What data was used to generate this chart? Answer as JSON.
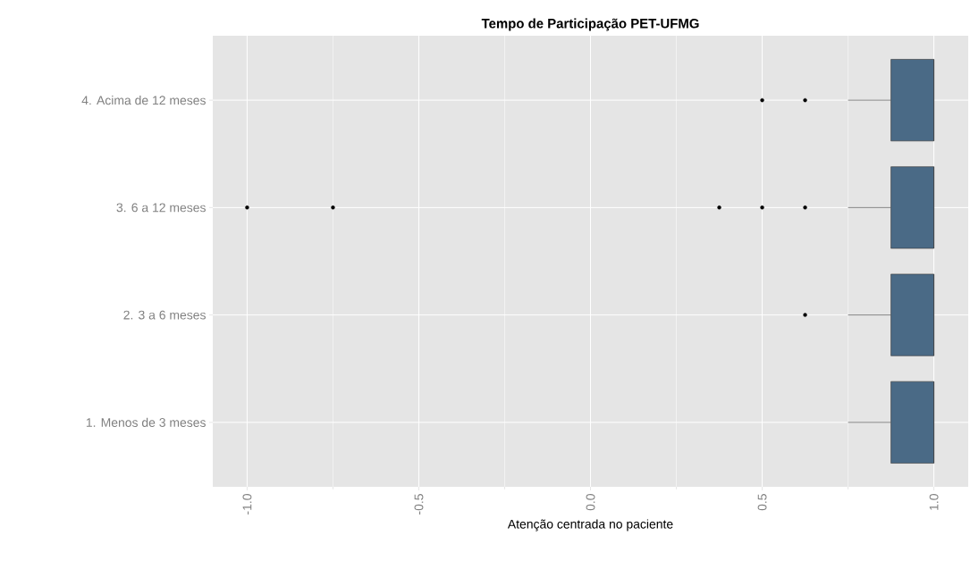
{
  "chart_data": {
    "type": "box",
    "orientation": "horizontal",
    "title": "Tempo de Participação PET-UFMG",
    "xlabel": "Atenção centrada no paciente",
    "categories": [
      "4. Acima de 12 meses",
      "3. 6 a 12 meses",
      "2. 3 a 6 meses",
      "1. Menos de 3 meses"
    ],
    "color": "#4a6a86",
    "boxes": [
      {
        "low": 0.75,
        "q1": 0.875,
        "median": 1.0,
        "q3": 1.0,
        "high": 1.0,
        "outliers": [
          0.5,
          0.625
        ]
      },
      {
        "low": 0.75,
        "q1": 0.875,
        "median": 1.0,
        "q3": 1.0,
        "high": 1.0,
        "outliers": [
          -1.0,
          -0.75,
          0.375,
          0.5,
          0.625
        ]
      },
      {
        "low": 0.75,
        "q1": 0.875,
        "median": 1.0,
        "q3": 1.0,
        "high": 1.0,
        "outliers": [
          0.625
        ]
      },
      {
        "low": 0.75,
        "q1": 0.875,
        "median": 1.0,
        "q3": 1.0,
        "high": 1.0
      }
    ],
    "xlim": [
      -1.1,
      1.1
    ],
    "xticks": [
      {
        "value": -1.0,
        "label": "-1.0"
      },
      {
        "value": -0.5,
        "label": "-0.5"
      },
      {
        "value": 0.0,
        "label": "0.0"
      },
      {
        "value": 0.5,
        "label": "0.5"
      },
      {
        "value": 1.0,
        "label": "1.0"
      }
    ],
    "grid": true
  }
}
